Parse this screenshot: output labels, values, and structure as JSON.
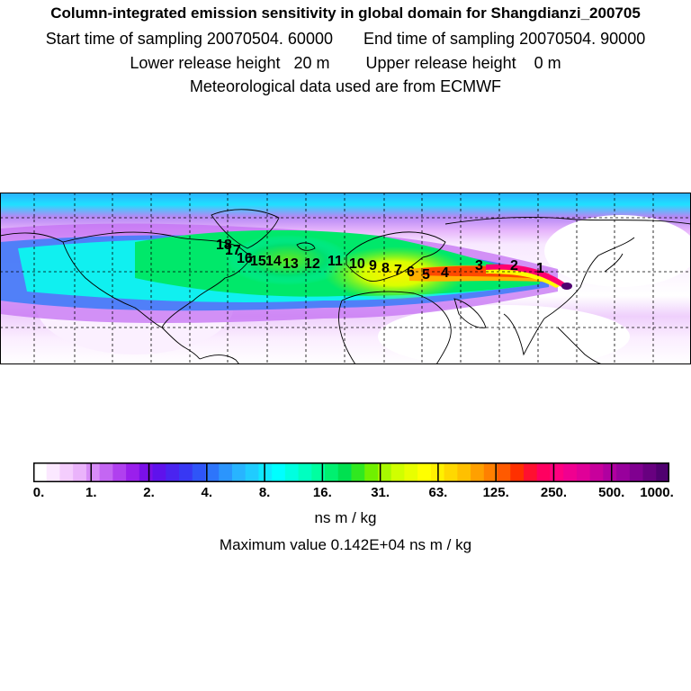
{
  "header": {
    "title": "Column-integrated emission sensitivity in global domain for Shangdianzi_200705",
    "start_time": "Start time of sampling 20070504. 60000",
    "end_time": "End time of sampling 20070504. 90000",
    "lower_release": "Lower release height   20 m",
    "upper_release": "Upper release height    0 m",
    "met_data": "Meteorological data used are from ECMWF"
  },
  "map": {
    "trajectory_labels": [
      "1",
      "2",
      "3",
      "4",
      "5",
      "6",
      "7",
      "8",
      "9",
      "10",
      "11",
      "12",
      "13",
      "14",
      "15",
      "16",
      "17",
      "18"
    ]
  },
  "colorbar": {
    "ticks": [
      "0.",
      "1.",
      "2.",
      "4.",
      "8.",
      "16.",
      "31.",
      "63.",
      "125.",
      "250.",
      "500.",
      "1000."
    ],
    "colors": [
      "#ffffff",
      "#fbe8ff",
      "#f4cdfd",
      "#eab3fb",
      "#d78cf7",
      "#c466f3",
      "#b040ef",
      "#9a1fec",
      "#7a10e8",
      "#5f12ec",
      "#4a24f0",
      "#3838f4",
      "#2f55f8",
      "#2d75fb",
      "#2b95fd",
      "#28b4ff",
      "#20ccff",
      "#10e8ff",
      "#00ffff",
      "#00ffe0",
      "#00ffc0",
      "#00ffa0",
      "#00f070",
      "#00e050",
      "#30e820",
      "#70f000",
      "#a8f800",
      "#d0ff00",
      "#e8ff00",
      "#ffff00",
      "#fff000",
      "#ffd800",
      "#ffc000",
      "#ffa000",
      "#ff8000",
      "#ff5a00",
      "#ff3000",
      "#ff1030",
      "#ff0060",
      "#ff0080",
      "#f00090",
      "#e00098",
      "#c8009c",
      "#b000a0",
      "#98009c",
      "#800090",
      "#680080",
      "#500070"
    ],
    "units": "ns m / kg",
    "max_value": "Maximum value  0.142E+04 ns m / kg"
  }
}
